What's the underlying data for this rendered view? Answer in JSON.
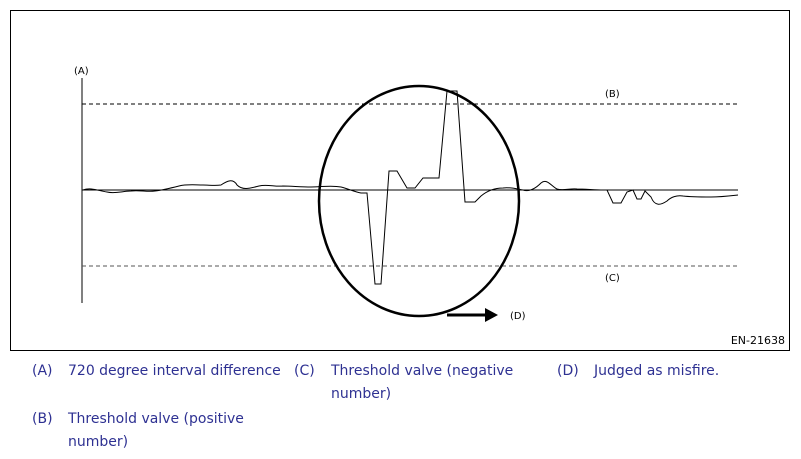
{
  "diagram": {
    "labels": {
      "a": "(A)",
      "b": "(B)",
      "c": "(C)",
      "d": "(D)"
    },
    "figure_id": "EN-21638"
  },
  "legend": [
    {
      "key": "(A)",
      "text": "720 degree interval difference"
    },
    {
      "key": "(B)",
      "text": "Threshold valve (positive number)"
    },
    {
      "key": "(C)",
      "text": "Threshold valve (negative number)"
    },
    {
      "key": "(D)",
      "text": "Judged as misfire."
    }
  ],
  "colors": {
    "legend_text": "#2e3192",
    "line": "#000000"
  }
}
